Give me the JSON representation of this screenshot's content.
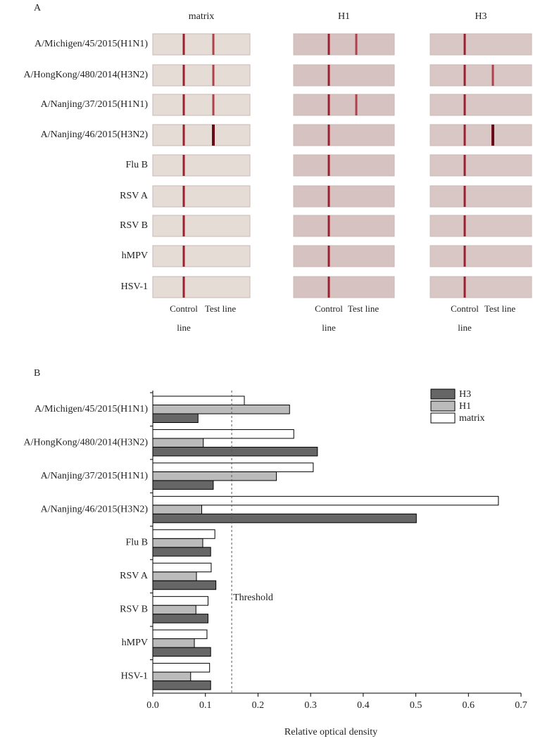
{
  "panel_a": {
    "label": "A",
    "columns": [
      "matrix",
      "H1",
      "H3"
    ],
    "rows": [
      "A/Michigen/45/2015(H1N1)",
      "A/HongKong/480/2014(H3N2)",
      "A/Nanjing/37/2015(H1N1)",
      "A/Nanjing/46/2015(H3N2)",
      "Flu B",
      "RSV A",
      "RSV B",
      "hMPV",
      "HSV-1"
    ],
    "control_label": "Control line",
    "test_label": "Test line"
  },
  "chart_data": {
    "type": "hbar",
    "panel_label": "B",
    "x_label": "Relative optical density",
    "categories": [
      "A/Michigen/45/2015(H1N1)",
      "A/HongKong/480/2014(H3N2)",
      "A/Nanjing/37/2015(H1N1)",
      "A/Nanjing/46/2015(H3N2)",
      "Flu B",
      "RSV A",
      "RSV B",
      "hMPV",
      "HSV-1"
    ],
    "series": [
      {
        "name": "H3",
        "color": "#666666",
        "values": [
          0.086,
          0.313,
          0.115,
          0.501,
          0.11,
          0.12,
          0.105,
          0.11,
          0.11
        ]
      },
      {
        "name": "H1",
        "color": "#bbbbbb",
        "values": [
          0.26,
          0.096,
          0.235,
          0.093,
          0.095,
          0.083,
          0.082,
          0.079,
          0.072
        ]
      },
      {
        "name": "matrix",
        "color": "#ffffff",
        "values": [
          0.174,
          0.268,
          0.305,
          0.657,
          0.118,
          0.111,
          0.105,
          0.103,
          0.108
        ]
      }
    ],
    "xlim": [
      0,
      0.7
    ],
    "xticks": [
      {
        "value": 0,
        "label": "0.0"
      },
      0.1,
      0.2,
      0.3,
      0.4,
      0.5,
      0.6,
      0.7
    ],
    "threshold": {
      "value": 0.15,
      "label": "Threshold"
    },
    "legend": "upper right"
  }
}
